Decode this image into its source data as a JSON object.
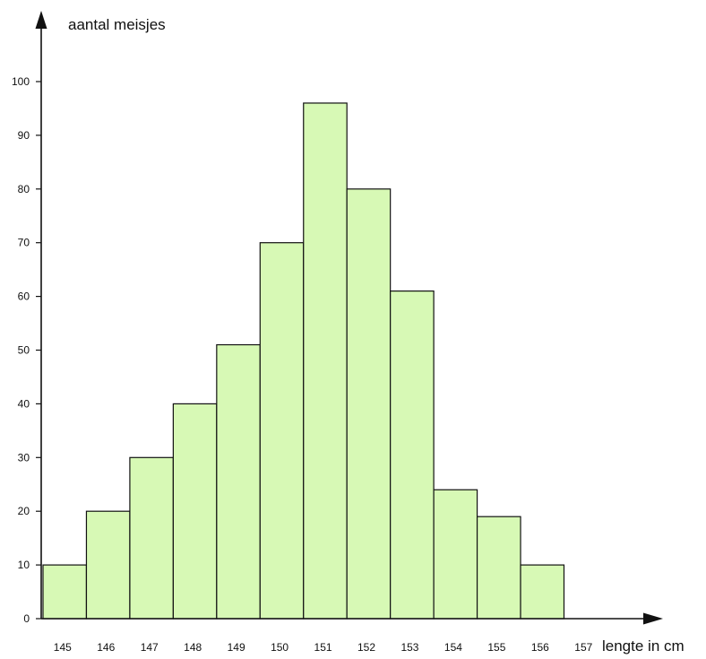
{
  "chart_data": {
    "type": "bar",
    "title": "",
    "ylabel": "aantal meisjes",
    "xlabel": "lengte in cm",
    "bin_edges": [
      145,
      146,
      147,
      148,
      149,
      150,
      151,
      152,
      153,
      154,
      155,
      156,
      157
    ],
    "x_ticks": [
      "145",
      "146",
      "147",
      "148",
      "149",
      "150",
      "151",
      "152",
      "153",
      "154",
      "155",
      "156",
      "157"
    ],
    "values": [
      10,
      20,
      30,
      40,
      51,
      70,
      96,
      80,
      61,
      24,
      19,
      10
    ],
    "ylim": [
      0,
      100
    ],
    "y_ticks": [
      0,
      10,
      20,
      30,
      40,
      50,
      60,
      70,
      80,
      90,
      100
    ],
    "bar_color": "#d7f9b5",
    "edge_color": "#111111",
    "grid": false,
    "legend": "none"
  }
}
